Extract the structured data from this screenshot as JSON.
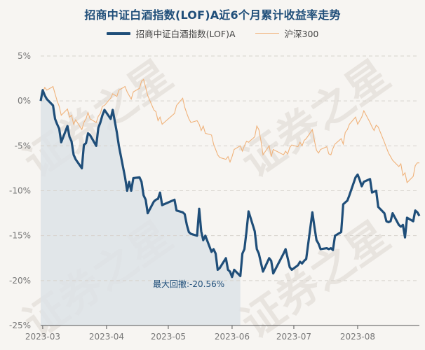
{
  "chart_data": {
    "type": "line",
    "title": "招商中证白酒指数(LOF)A近6个月累计收益率走势",
    "legend_placement": "top-center",
    "grid": "horizontal-dashed",
    "yunit": "%",
    "ylim": [
      -25,
      5
    ],
    "yticks": [
      5,
      0,
      -5,
      -10,
      -15,
      -20,
      -25
    ],
    "ytick_labels": [
      "5%",
      "0%",
      "-5%",
      "-10%",
      "-15%",
      "-20%",
      "-25%"
    ],
    "xlim": [
      "2023-02-28",
      "2023-08-31"
    ],
    "xticks": [
      "2023-03-01",
      "2023-04-01",
      "2023-05-01",
      "2023-06-01",
      "2023-07-01",
      "2023-08-01"
    ],
    "xtick_labels": [
      "2023-03",
      "2023-04",
      "2023-05",
      "2023-06",
      "2023-07",
      "2023-08"
    ],
    "series": [
      {
        "name": "招商中证白酒指数(LOF)A",
        "color": "#1f4e79",
        "points": [
          [
            "2023-02-28",
            0.0
          ],
          [
            "2023-03-01",
            1.2
          ],
          [
            "2023-03-02",
            0.6
          ],
          [
            "2023-03-03",
            0.2
          ],
          [
            "2023-03-06",
            -0.5
          ],
          [
            "2023-03-07",
            -2.0
          ],
          [
            "2023-03-08",
            -2.6
          ],
          [
            "2023-03-09",
            -3.1
          ],
          [
            "2023-03-10",
            -4.6
          ],
          [
            "2023-03-13",
            -2.8
          ],
          [
            "2023-03-14",
            -4.0
          ],
          [
            "2023-03-15",
            -4.5
          ],
          [
            "2023-03-16",
            -6.0
          ],
          [
            "2023-03-17",
            -6.5
          ],
          [
            "2023-03-20",
            -7.5
          ],
          [
            "2023-03-21",
            -4.9
          ],
          [
            "2023-03-22",
            -4.7
          ],
          [
            "2023-03-23",
            -3.6
          ],
          [
            "2023-03-24",
            -3.8
          ],
          [
            "2023-03-27",
            -5.0
          ],
          [
            "2023-03-28",
            -3.0
          ],
          [
            "2023-03-29",
            -2.4
          ],
          [
            "2023-03-30",
            -1.6
          ],
          [
            "2023-03-31",
            -1.0
          ],
          [
            "2023-04-03",
            -2.0
          ],
          [
            "2023-04-04",
            -1.0
          ],
          [
            "2023-04-06",
            -3.5
          ],
          [
            "2023-04-07",
            -5.0
          ],
          [
            "2023-04-10",
            -8.5
          ],
          [
            "2023-04-11",
            -10.0
          ],
          [
            "2023-04-12",
            -9.0
          ],
          [
            "2023-04-13",
            -10.0
          ],
          [
            "2023-04-14",
            -8.6
          ],
          [
            "2023-04-17",
            -8.5
          ],
          [
            "2023-04-18",
            -9.0
          ],
          [
            "2023-04-19",
            -10.5
          ],
          [
            "2023-04-20",
            -11.0
          ],
          [
            "2023-04-21",
            -12.5
          ],
          [
            "2023-04-24",
            -11.2
          ],
          [
            "2023-04-25",
            -11.0
          ],
          [
            "2023-04-26",
            -10.9
          ],
          [
            "2023-04-27",
            -10.2
          ],
          [
            "2023-04-28",
            -11.6
          ],
          [
            "2023-05-04",
            -11.0
          ],
          [
            "2023-05-05",
            -12.2
          ],
          [
            "2023-05-08",
            -12.4
          ],
          [
            "2023-05-09",
            -12.6
          ],
          [
            "2023-05-10",
            -13.8
          ],
          [
            "2023-05-11",
            -14.6
          ],
          [
            "2023-05-12",
            -14.8
          ],
          [
            "2023-05-15",
            -15.0
          ],
          [
            "2023-05-16",
            -12.0
          ],
          [
            "2023-05-17",
            -14.5
          ],
          [
            "2023-05-18",
            -15.5
          ],
          [
            "2023-05-19",
            -15.0
          ],
          [
            "2023-05-22",
            -16.8
          ],
          [
            "2023-05-23",
            -16.5
          ],
          [
            "2023-05-24",
            -17.0
          ],
          [
            "2023-05-25",
            -18.8
          ],
          [
            "2023-05-26",
            -18.6
          ],
          [
            "2023-05-29",
            -17.5
          ],
          [
            "2023-05-30",
            -18.8
          ],
          [
            "2023-05-31",
            -19.0
          ],
          [
            "2023-06-01",
            -19.6
          ],
          [
            "2023-06-02",
            -18.8
          ],
          [
            "2023-06-05",
            -19.5
          ],
          [
            "2023-06-06",
            -17.0
          ],
          [
            "2023-06-07",
            -16.5
          ],
          [
            "2023-06-08",
            -14.5
          ],
          [
            "2023-06-09",
            -12.3
          ],
          [
            "2023-06-12",
            -14.5
          ],
          [
            "2023-06-13",
            -16.5
          ],
          [
            "2023-06-14",
            -17.0
          ],
          [
            "2023-06-15",
            -18.0
          ],
          [
            "2023-06-16",
            -19.0
          ],
          [
            "2023-06-19",
            -17.5
          ],
          [
            "2023-06-20",
            -17.8
          ],
          [
            "2023-06-21",
            -19.2
          ],
          [
            "2023-06-26",
            -17.0
          ],
          [
            "2023-06-27",
            -16.5
          ],
          [
            "2023-06-28",
            -17.5
          ],
          [
            "2023-06-29",
            -18.5
          ],
          [
            "2023-06-30",
            -18.8
          ],
          [
            "2023-07-03",
            -18.3
          ],
          [
            "2023-07-04",
            -17.9
          ],
          [
            "2023-07-05",
            -18.1
          ],
          [
            "2023-07-06",
            -17.8
          ],
          [
            "2023-07-07",
            -17.6
          ],
          [
            "2023-07-10",
            -12.4
          ],
          [
            "2023-07-11",
            -14.0
          ],
          [
            "2023-07-12",
            -15.5
          ],
          [
            "2023-07-13",
            -15.9
          ],
          [
            "2023-07-14",
            -16.5
          ],
          [
            "2023-07-17",
            -16.4
          ],
          [
            "2023-07-18",
            -16.5
          ],
          [
            "2023-07-19",
            -16.4
          ],
          [
            "2023-07-20",
            -16.6
          ],
          [
            "2023-07-21",
            -15.0
          ],
          [
            "2023-07-24",
            -14.6
          ],
          [
            "2023-07-25",
            -11.5
          ],
          [
            "2023-07-26",
            -11.3
          ],
          [
            "2023-07-27",
            -11.1
          ],
          [
            "2023-07-28",
            -10.5
          ],
          [
            "2023-07-31",
            -8.5
          ],
          [
            "2023-08-01",
            -8.2
          ],
          [
            "2023-08-02",
            -8.8
          ],
          [
            "2023-08-03",
            -9.5
          ],
          [
            "2023-08-04",
            -9.0
          ],
          [
            "2023-08-07",
            -8.7
          ],
          [
            "2023-08-08",
            -10.2
          ],
          [
            "2023-08-09",
            -10.1
          ],
          [
            "2023-08-10",
            -10.0
          ],
          [
            "2023-08-11",
            -11.8
          ],
          [
            "2023-08-14",
            -12.5
          ],
          [
            "2023-08-15",
            -13.4
          ],
          [
            "2023-08-16",
            -13.5
          ],
          [
            "2023-08-17",
            -13.4
          ],
          [
            "2023-08-18",
            -12.5
          ],
          [
            "2023-08-21",
            -13.8
          ],
          [
            "2023-08-22",
            -14.0
          ],
          [
            "2023-08-23",
            -13.8
          ],
          [
            "2023-08-24",
            -15.2
          ],
          [
            "2023-08-25",
            -13.0
          ],
          [
            "2023-08-28",
            -13.4
          ],
          [
            "2023-08-29",
            -12.2
          ],
          [
            "2023-08-30",
            -12.4
          ],
          [
            "2023-08-31",
            -12.8
          ]
        ]
      },
      {
        "name": "沪深300",
        "color": "#f0b27a",
        "points": [
          [
            "2023-02-28",
            0.0
          ],
          [
            "2023-03-01",
            1.0
          ],
          [
            "2023-03-02",
            1.5
          ],
          [
            "2023-03-03",
            1.2
          ],
          [
            "2023-03-06",
            1.6
          ],
          [
            "2023-03-07",
            0.8
          ],
          [
            "2023-03-08",
            0.0
          ],
          [
            "2023-03-09",
            -0.6
          ],
          [
            "2023-03-10",
            -1.6
          ],
          [
            "2023-03-13",
            -0.9
          ],
          [
            "2023-03-14",
            -1.8
          ],
          [
            "2023-03-15",
            -1.6
          ],
          [
            "2023-03-16",
            -2.6
          ],
          [
            "2023-03-17",
            -2.1
          ],
          [
            "2023-03-20",
            -3.2
          ],
          [
            "2023-03-21",
            -2.4
          ],
          [
            "2023-03-22",
            -2.0
          ],
          [
            "2023-03-23",
            -1.3
          ],
          [
            "2023-03-24",
            -2.0
          ],
          [
            "2023-03-27",
            -2.4
          ],
          [
            "2023-03-28",
            -1.7
          ],
          [
            "2023-03-29",
            -1.4
          ],
          [
            "2023-03-30",
            -0.6
          ],
          [
            "2023-03-31",
            -0.5
          ],
          [
            "2023-04-03",
            0.3
          ],
          [
            "2023-04-04",
            0.8
          ],
          [
            "2023-04-06",
            0.5
          ],
          [
            "2023-04-07",
            1.2
          ],
          [
            "2023-04-10",
            1.6
          ],
          [
            "2023-04-11",
            1.0
          ],
          [
            "2023-04-12",
            0.6
          ],
          [
            "2023-04-13",
            0.2
          ],
          [
            "2023-04-14",
            1.0
          ],
          [
            "2023-04-17",
            1.4
          ],
          [
            "2023-04-18",
            2.2
          ],
          [
            "2023-04-19",
            2.4
          ],
          [
            "2023-04-20",
            1.5
          ],
          [
            "2023-04-21",
            0.6
          ],
          [
            "2023-04-24",
            -1.0
          ],
          [
            "2023-04-25",
            -1.2
          ],
          [
            "2023-04-26",
            -2.2
          ],
          [
            "2023-04-27",
            -1.8
          ],
          [
            "2023-04-28",
            -2.6
          ],
          [
            "2023-05-04",
            -1.4
          ],
          [
            "2023-05-05",
            -0.5
          ],
          [
            "2023-05-08",
            0.3
          ],
          [
            "2023-05-09",
            -0.7
          ],
          [
            "2023-05-10",
            -1.4
          ],
          [
            "2023-05-11",
            -2.0
          ],
          [
            "2023-05-12",
            -2.4
          ],
          [
            "2023-05-15",
            -2.2
          ],
          [
            "2023-05-16",
            -2.6
          ],
          [
            "2023-05-17",
            -3.3
          ],
          [
            "2023-05-18",
            -2.8
          ],
          [
            "2023-05-19",
            -3.6
          ],
          [
            "2023-05-22",
            -3.8
          ],
          [
            "2023-05-23",
            -4.8
          ],
          [
            "2023-05-24",
            -5.4
          ],
          [
            "2023-05-25",
            -6.0
          ],
          [
            "2023-05-26",
            -6.3
          ],
          [
            "2023-05-29",
            -6.5
          ],
          [
            "2023-05-30",
            -6.2
          ],
          [
            "2023-05-31",
            -6.8
          ],
          [
            "2023-06-01",
            -6.2
          ],
          [
            "2023-06-02",
            -5.4
          ],
          [
            "2023-06-05",
            -5.0
          ],
          [
            "2023-06-06",
            -5.6
          ],
          [
            "2023-06-07",
            -5.0
          ],
          [
            "2023-06-08",
            -4.5
          ],
          [
            "2023-06-09",
            -4.6
          ],
          [
            "2023-06-12",
            -4.0
          ],
          [
            "2023-06-13",
            -2.8
          ],
          [
            "2023-06-14",
            -3.2
          ],
          [
            "2023-06-15",
            -4.4
          ],
          [
            "2023-06-16",
            -6.0
          ],
          [
            "2023-06-19",
            -5.0
          ],
          [
            "2023-06-20",
            -6.2
          ],
          [
            "2023-06-21",
            -5.4
          ],
          [
            "2023-06-26",
            -6.0
          ],
          [
            "2023-06-27",
            -5.6
          ],
          [
            "2023-06-28",
            -5.9
          ],
          [
            "2023-06-29",
            -5.2
          ],
          [
            "2023-06-30",
            -4.9
          ],
          [
            "2023-07-03",
            -5.1
          ],
          [
            "2023-07-04",
            -4.6
          ],
          [
            "2023-07-05",
            -5.0
          ],
          [
            "2023-07-06",
            -4.4
          ],
          [
            "2023-07-07",
            -4.2
          ],
          [
            "2023-07-10",
            -3.2
          ],
          [
            "2023-07-11",
            -4.4
          ],
          [
            "2023-07-12",
            -5.5
          ],
          [
            "2023-07-13",
            -5.8
          ],
          [
            "2023-07-14",
            -5.4
          ],
          [
            "2023-07-17",
            -5.1
          ],
          [
            "2023-07-18",
            -5.9
          ],
          [
            "2023-07-19",
            -6.0
          ],
          [
            "2023-07-20",
            -5.3
          ],
          [
            "2023-07-21",
            -4.8
          ],
          [
            "2023-07-24",
            -4.2
          ],
          [
            "2023-07-25",
            -4.8
          ],
          [
            "2023-07-26",
            -3.5
          ],
          [
            "2023-07-27",
            -3.2
          ],
          [
            "2023-07-28",
            -2.6
          ],
          [
            "2023-07-31",
            -1.8
          ],
          [
            "2023-08-01",
            -2.6
          ],
          [
            "2023-08-02",
            -2.2
          ],
          [
            "2023-08-03",
            -1.8
          ],
          [
            "2023-08-04",
            -1.1
          ],
          [
            "2023-08-07",
            -2.4
          ],
          [
            "2023-08-08",
            -2.9
          ],
          [
            "2023-08-09",
            -3.3
          ],
          [
            "2023-08-10",
            -2.7
          ],
          [
            "2023-08-11",
            -2.9
          ],
          [
            "2023-08-14",
            -4.6
          ],
          [
            "2023-08-15",
            -5.2
          ],
          [
            "2023-08-16",
            -5.8
          ],
          [
            "2023-08-17",
            -6.2
          ],
          [
            "2023-08-18",
            -6.6
          ],
          [
            "2023-08-21",
            -7.3
          ],
          [
            "2023-08-22",
            -7.0
          ],
          [
            "2023-08-23",
            -8.3
          ],
          [
            "2023-08-24",
            -8.0
          ],
          [
            "2023-08-25",
            -9.1
          ],
          [
            "2023-08-28",
            -8.4
          ],
          [
            "2023-08-29",
            -7.2
          ],
          [
            "2023-08-30",
            -6.9
          ],
          [
            "2023-08-31",
            -6.9
          ]
        ]
      }
    ],
    "drawdown": {
      "label": "最大回撤:",
      "value": "-20.56%",
      "start": "2023-02-28",
      "end": "2023-06-05",
      "fill_color": "#dde3e8"
    },
    "watermark": "证券之星"
  }
}
